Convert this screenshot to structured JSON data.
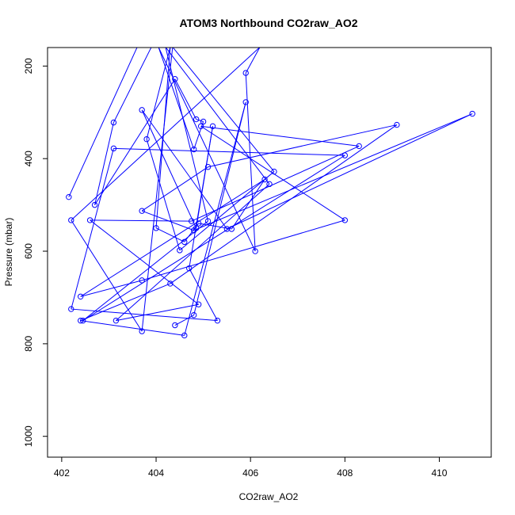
{
  "chart_data": {
    "type": "line",
    "title": "ATOM3 Northbound CO2raw_AO2",
    "xlabel": "CO2raw_AO2",
    "ylabel": "Pressure (mbar)",
    "xlim": [
      401.7,
      411.1
    ],
    "ylim": [
      1045,
      160
    ],
    "y_reversed": true,
    "xticks": [
      402,
      404,
      406,
      408,
      410
    ],
    "yticks": [
      200,
      400,
      600,
      800,
      1000
    ],
    "series_color": "#0000ff",
    "grid": false,
    "series": [
      {
        "x": [
          402.15,
          403.6,
          403.9,
          403.1,
          402.7,
          404.4,
          404.85,
          405.0,
          404.8,
          404.05,
          406.1,
          405.9,
          406.2,
          402.2,
          403.7,
          404.35,
          406.5,
          404.5,
          403.8,
          404.3,
          404.0,
          404.6,
          404.9,
          405.6,
          406.3,
          402.4,
          403.7,
          408.0,
          404.95,
          408.3,
          404.75,
          402.6,
          404.9,
          403.15,
          406.4,
          404.2,
          405.1,
          402.45,
          408.0,
          403.1,
          402.2,
          405.3,
          404.7,
          405.2,
          404.85,
          403.7,
          405.5,
          410.7,
          404.8,
          403.7,
          405.1,
          409.1,
          404.3,
          402.4,
          404.6,
          405.9,
          404.8,
          404.4
        ],
        "y": [
          483,
          159,
          159,
          322,
          500,
          228,
          315,
          320,
          380,
          159,
          600,
          215,
          159,
          533,
          773,
          159,
          428,
          598,
          358,
          159,
          550,
          580,
          540,
          552,
          445,
          698,
          663,
          533,
          330,
          373,
          535,
          533,
          715,
          750,
          455,
          159,
          535,
          750,
          393,
          378,
          725,
          750,
          637,
          330,
          550,
          295,
          552,
          303,
          555,
          513,
          418,
          327,
          670,
          750,
          782,
          278,
          738,
          760
        ]
      }
    ]
  }
}
